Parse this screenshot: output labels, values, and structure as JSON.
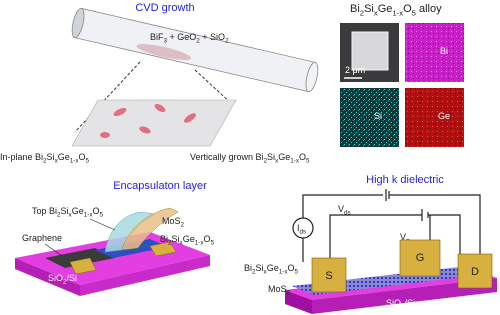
{
  "cvd": {
    "title": "CVD growth",
    "precursors": [
      "BiF",
      "3",
      " + GeO",
      "2",
      " + SiO",
      "2"
    ],
    "in_plane": [
      "In-plane Bi",
      "2",
      "Si",
      "x",
      "Ge",
      "1-x",
      "O",
      "5"
    ],
    "vertical": [
      "Vertically grown Bi",
      "2",
      "Si",
      "x",
      "Ge",
      "1-x",
      "O",
      "5"
    ]
  },
  "alloy": {
    "title": [
      "Bi",
      "2",
      "Si",
      "x",
      "Ge",
      "1-x",
      "O",
      "5",
      " alloy"
    ],
    "scale_bar": "2 μm",
    "maps": [
      "Bi",
      "Si",
      "Ge"
    ]
  },
  "encapsulation": {
    "title": "Encapsulaton layer",
    "top": [
      "Top Bi",
      "2",
      "Si",
      "x",
      "Ge",
      "1-x",
      "O",
      "5"
    ],
    "mos2": [
      "MoS",
      "2"
    ],
    "bsgo": [
      "Bi",
      "2",
      "Si",
      "x",
      "Ge",
      "1-x",
      "O",
      "5"
    ],
    "graphene": "Graphene",
    "substrate": [
      "SiO",
      "2",
      "/Si"
    ]
  },
  "dielectric": {
    "title": "High k dielectric",
    "ids": [
      "I",
      "ds"
    ],
    "vds": [
      "V",
      "ds"
    ],
    "vg": [
      "V",
      "g"
    ],
    "electrodes": [
      "S",
      "G",
      "D"
    ],
    "bsgo": [
      "Bi",
      "2",
      "Si",
      "x",
      "Ge",
      "1-x",
      "O",
      "5"
    ],
    "mos2": [
      "MoS",
      "2"
    ],
    "substrate": [
      "SiO",
      "2",
      "/Si"
    ]
  }
}
